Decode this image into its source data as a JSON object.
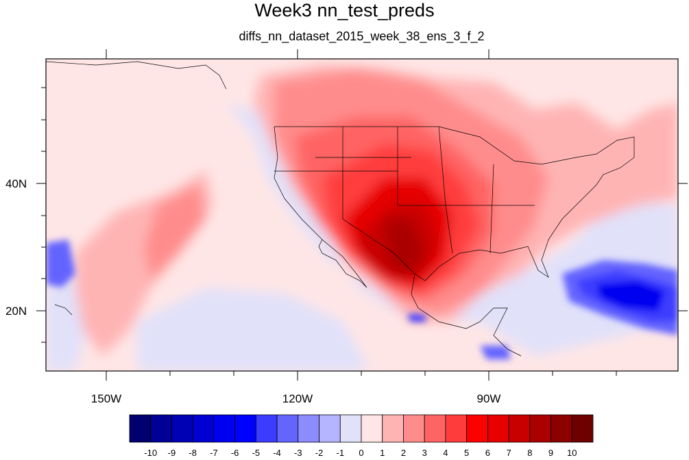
{
  "title": "Week3 nn_test_preds",
  "subtitle": "diffs_nn_dataset_2015_week_38_ens_3_f_2",
  "axes": {
    "lat_labels": [
      "40N",
      "20N"
    ],
    "lon_labels": [
      "150W",
      "120W",
      "90W"
    ]
  },
  "colorbar": {
    "labels": [
      "-10",
      "-9",
      "-8",
      "-7",
      "-6",
      "-5",
      "-4",
      "-3",
      "-2",
      "-1",
      "0",
      "1",
      "2",
      "3",
      "4",
      "5",
      "6",
      "7",
      "8",
      "9",
      "10"
    ],
    "colors": [
      "#00006e",
      "#000096",
      "#0000b4",
      "#0000d2",
      "#0000f0",
      "#0000ff",
      "#3c3cff",
      "#6464ff",
      "#8c8cff",
      "#b4b4ff",
      "#e1e1fa",
      "#ffe6e6",
      "#ffb4b4",
      "#ff8c8c",
      "#ff6464",
      "#ff3c3c",
      "#ff0000",
      "#e60000",
      "#c80000",
      "#aa0000",
      "#8c0000",
      "#6e0000"
    ]
  }
}
